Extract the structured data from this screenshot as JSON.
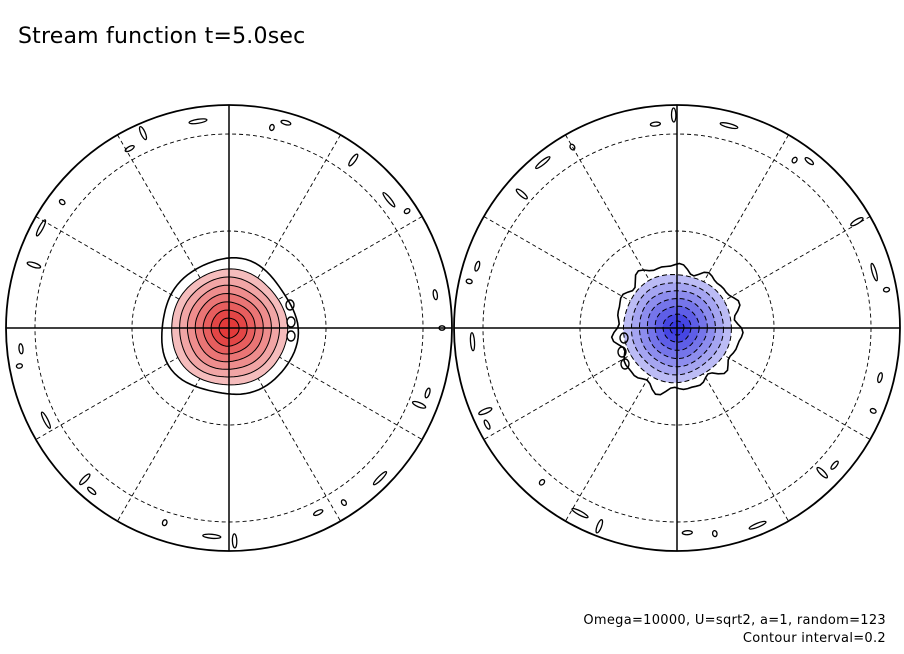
{
  "title": "Stream function t=5.0sec",
  "footer": {
    "params": "Omega=10000, U=sqrt2, a=1, random=123",
    "interval": "Contour interval=0.2"
  },
  "colors": {
    "positive": "#e03030",
    "negative": "#3030e0",
    "line": "#000000"
  },
  "chart_data": {
    "type": "contour",
    "projection": "polar stereographic",
    "contour_interval": 0.2,
    "grid": "dashed latitude circles and meridians",
    "panels": [
      {
        "hemisphere": "north",
        "sign": "positive",
        "fill": "red",
        "max_value": 1.2,
        "levels": [
          0.2,
          0.4,
          0.6,
          0.8,
          1.0,
          1.2
        ]
      },
      {
        "hemisphere": "south",
        "sign": "negative",
        "fill": "blue",
        "min_value": -1.2,
        "levels": [
          -0.2,
          -0.4,
          -0.6,
          -0.8,
          -1.0,
          -1.2
        ]
      }
    ]
  }
}
